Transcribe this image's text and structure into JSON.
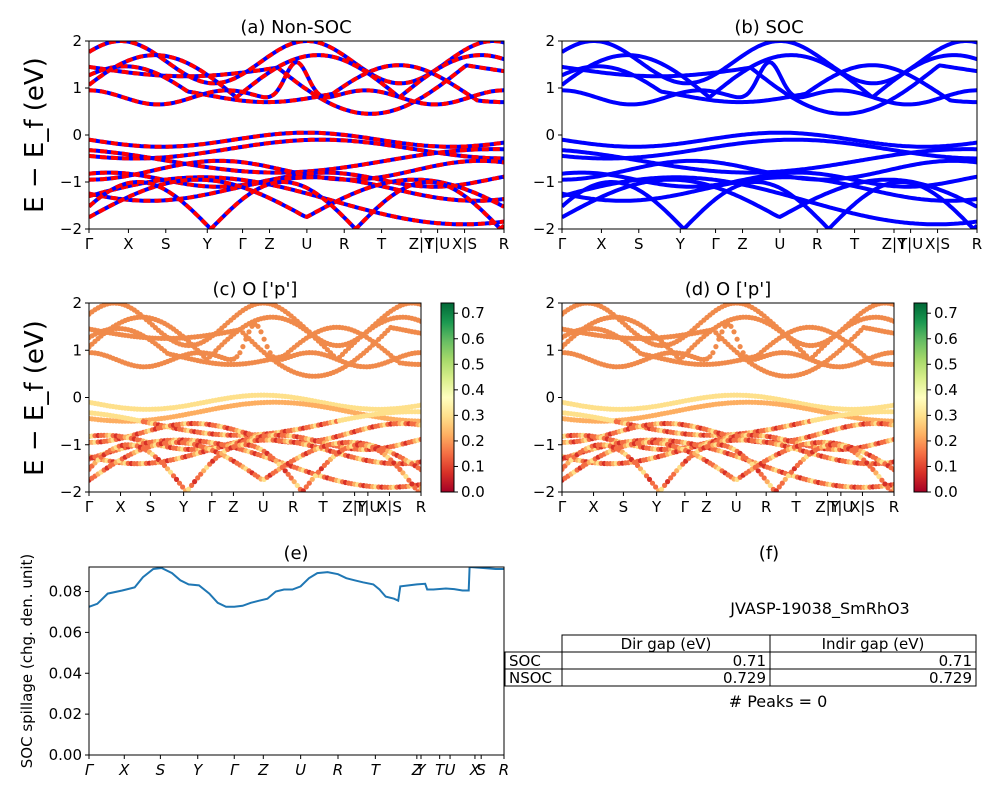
{
  "chart_data": [
    {
      "type": "line",
      "panel": "a",
      "title": "(a) Non-SOC",
      "ylabel": "E − E_f (eV)",
      "ylim": [
        -2,
        2
      ],
      "yticks": [
        "2",
        "1",
        "0",
        "−1",
        "−2"
      ],
      "kpath": [
        "Γ",
        "X",
        "S",
        "Y",
        "Γ",
        "Z",
        "U",
        "R",
        "T",
        "Z|Y",
        "T|U",
        "X|S",
        "R"
      ],
      "series": [
        {
          "name": "",
          "color": "#ff0000",
          "style": "thick dashed overlay on blue",
          "bands": "multiple"
        }
      ]
    },
    {
      "type": "line",
      "panel": "b",
      "title": "(b) SOC",
      "ylim": [
        -2,
        2
      ],
      "yticks": [
        "2",
        "1",
        "0",
        "−1",
        "−2"
      ],
      "kpath": [
        "Γ",
        "X",
        "S",
        "Y",
        "Γ",
        "Z",
        "U",
        "R",
        "T",
        "Z|Y",
        "T|U",
        "X|S",
        "R"
      ],
      "series": [
        {
          "name": "",
          "color": "#0000ff"
        }
      ]
    },
    {
      "type": "scatter",
      "panel": "c",
      "title": "(c)  O ['p']",
      "ylabel": "E − E_f (eV)",
      "ylim": [
        -2,
        2
      ],
      "yticks": [
        "2",
        "1",
        "0",
        "−1",
        "−2"
      ],
      "kpath": [
        "Γ",
        "X",
        "S",
        "Y",
        "Γ",
        "Z",
        "U",
        "R",
        "T",
        "Z|Y",
        "T|U",
        "X|S",
        "R"
      ],
      "colorbar": {
        "min": 0.0,
        "max": 0.7,
        "ticks": [
          "0.7",
          "0.6",
          "0.5",
          "0.4",
          "0.3",
          "0.2",
          "0.1",
          "0.0"
        ],
        "cmap": "RdYlGn"
      }
    },
    {
      "type": "scatter",
      "panel": "d",
      "title": "(d) O ['p']",
      "ylim": [
        -2,
        2
      ],
      "yticks": [
        "2",
        "1",
        "0",
        "−1",
        "−2"
      ],
      "kpath": [
        "Γ",
        "X",
        "S",
        "Y",
        "Γ",
        "Z",
        "U",
        "R",
        "T",
        "Z|Y",
        "T|U",
        "X|S",
        "R"
      ],
      "colorbar": {
        "min": 0.0,
        "max": 0.7,
        "ticks": [
          "0.7",
          "0.6",
          "0.5",
          "0.4",
          "0.3",
          "0.2",
          "0.1",
          "0.0"
        ],
        "cmap": "RdYlGn"
      }
    },
    {
      "type": "line",
      "panel": "e",
      "title": "(e)",
      "ylabel": "SOC spillage (chg. den. unit)",
      "ylim": [
        0.0,
        0.092
      ],
      "yticks": [
        "0.08",
        "0.06",
        "0.04",
        "0.02",
        "0.00"
      ],
      "kpath": [
        "Γ",
        "X",
        "S",
        "Y",
        "Γ",
        "Z",
        "U",
        "R",
        "T",
        "Z",
        "Y",
        "T",
        "U",
        "X",
        "S",
        "R"
      ],
      "series": [
        {
          "name": "",
          "color": "#1f77b4",
          "points": [
            [
              0,
              0.0725
            ],
            [
              0.02,
              0.074
            ],
            [
              0.045,
              0.079
            ],
            [
              0.08,
              0.0805
            ],
            [
              0.11,
              0.082
            ],
            [
              0.13,
              0.087
            ],
            [
              0.155,
              0.091
            ],
            [
              0.175,
              0.0915
            ],
            [
              0.2,
              0.089
            ],
            [
              0.22,
              0.0855
            ],
            [
              0.24,
              0.0835
            ],
            [
              0.265,
              0.083
            ],
            [
              0.29,
              0.079
            ],
            [
              0.31,
              0.0745
            ],
            [
              0.33,
              0.0725
            ],
            [
              0.35,
              0.0725
            ],
            [
              0.37,
              0.073
            ],
            [
              0.39,
              0.0745
            ],
            [
              0.41,
              0.0755
            ],
            [
              0.43,
              0.0765
            ],
            [
              0.45,
              0.08
            ],
            [
              0.47,
              0.081
            ],
            [
              0.49,
              0.081
            ],
            [
              0.51,
              0.0825
            ],
            [
              0.53,
              0.0865
            ],
            [
              0.55,
              0.089
            ],
            [
              0.575,
              0.0895
            ],
            [
              0.6,
              0.0885
            ],
            [
              0.62,
              0.0865
            ],
            [
              0.64,
              0.0855
            ],
            [
              0.66,
              0.0845
            ],
            [
              0.685,
              0.0835
            ],
            [
              0.7,
              0.081
            ],
            [
              0.715,
              0.0775
            ],
            [
              0.735,
              0.0765
            ],
            [
              0.745,
              0.0755
            ],
            [
              0.75,
              0.0825
            ],
            [
              0.77,
              0.083
            ],
            [
              0.79,
              0.0835
            ],
            [
              0.81,
              0.0838
            ],
            [
              0.815,
              0.081
            ],
            [
              0.83,
              0.081
            ],
            [
              0.86,
              0.0815
            ],
            [
              0.88,
              0.0812
            ],
            [
              0.9,
              0.0805
            ],
            [
              0.915,
              0.0805
            ],
            [
              0.917,
              0.092
            ],
            [
              0.95,
              0.0915
            ],
            [
              0.98,
              0.091
            ],
            [
              1.0,
              0.091
            ]
          ]
        }
      ]
    }
  ],
  "info": {
    "title": "(f)",
    "material": "JVASP-19038_SmRhO3",
    "headers": [
      "Dir gap (eV)",
      "Indir gap (eV)"
    ],
    "rows": [
      {
        "label": "SOC",
        "dir": "0.71",
        "indir": "0.71"
      },
      {
        "label": "NSOC",
        "dir": "0.729",
        "indir": "0.729"
      }
    ],
    "peaks": "# Peaks = 0"
  }
}
